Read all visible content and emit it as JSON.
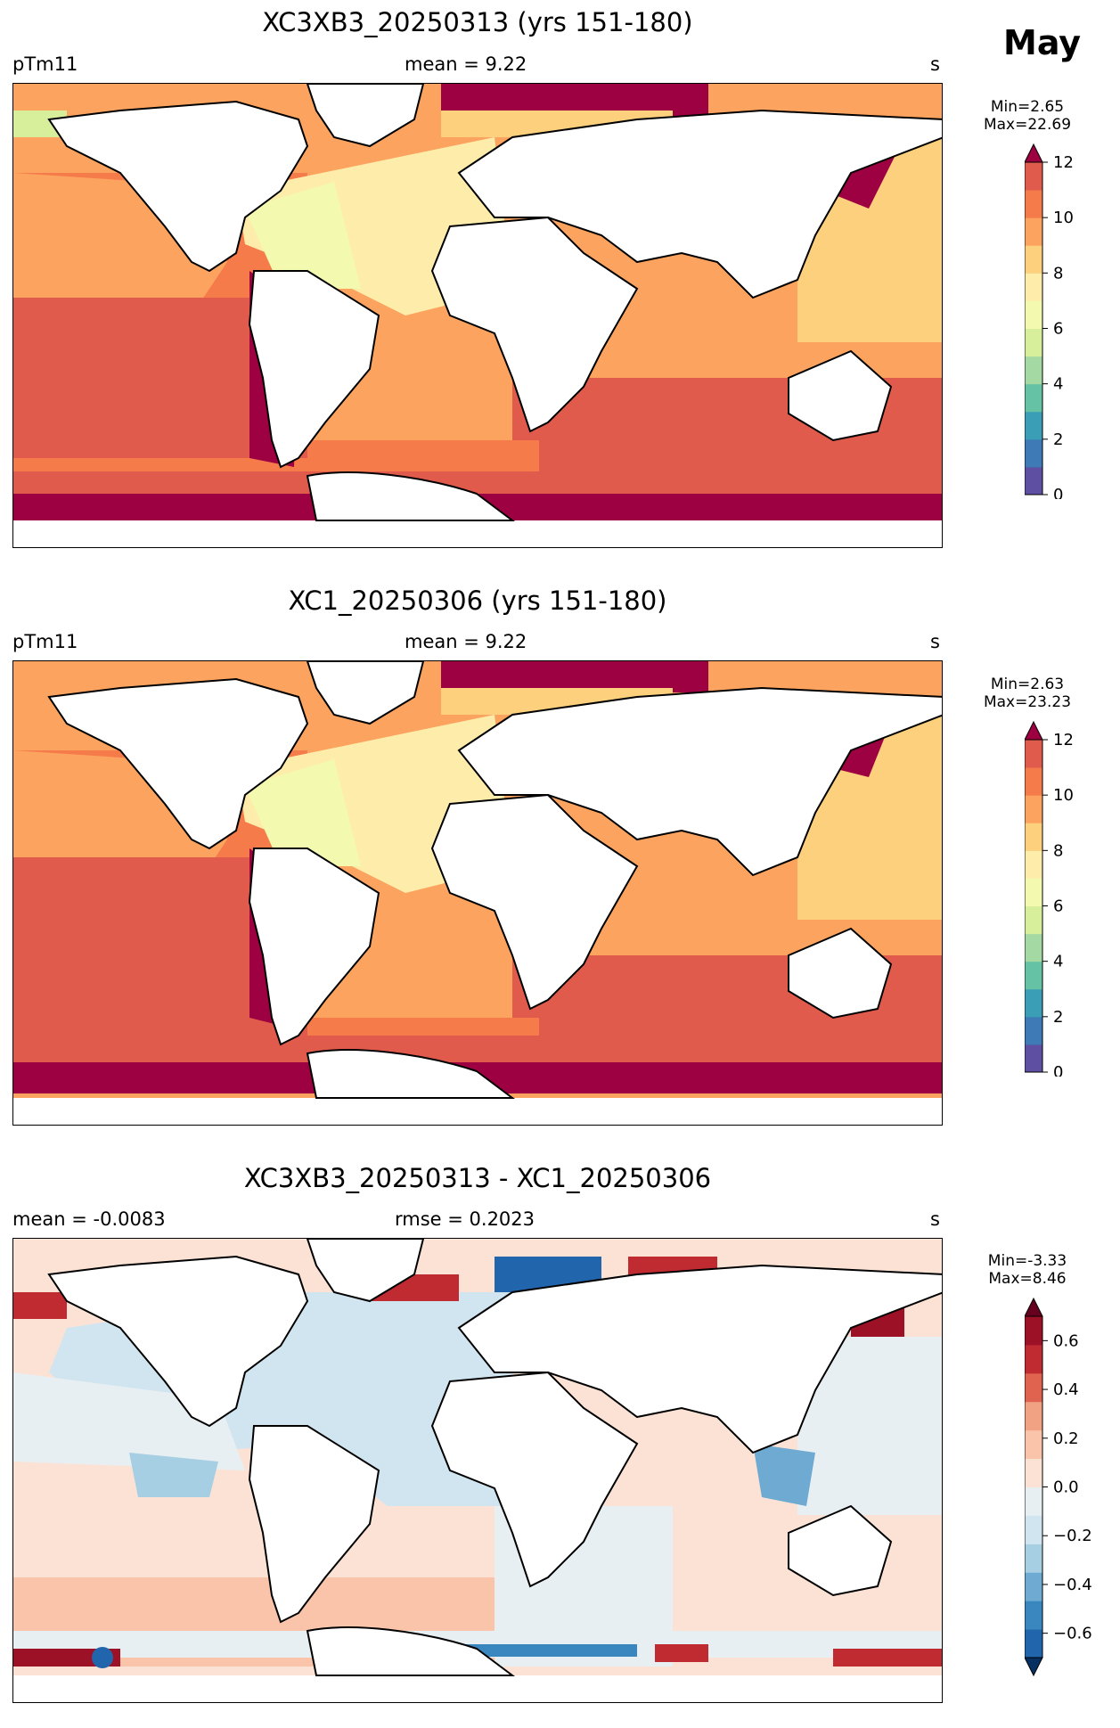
{
  "month": "May",
  "panels": [
    {
      "title": "XC3XB3_20250313 (yrs 151-180)",
      "left_label": "pTm11",
      "center_label": "mean = 9.22",
      "right_label": "s",
      "minmax": [
        "Min=2.65",
        "Max=22.69"
      ],
      "colorbar": {
        "ticks": [
          "0",
          "2",
          "4",
          "6",
          "8",
          "10",
          "12"
        ],
        "colors": [
          "#5e4fa2",
          "#3e7ab6",
          "#3a9fb6",
          "#66c2a5",
          "#a5d9a3",
          "#d7ef9b",
          "#f3fab0",
          "#feedaa",
          "#fdd07e",
          "#fca45f",
          "#f67b4a",
          "#e05b4b",
          "#9e0142"
        ],
        "extend": "max"
      }
    },
    {
      "title": "XC1_20250306 (yrs 151-180)",
      "left_label": "pTm11",
      "center_label": "mean = 9.22",
      "right_label": "s",
      "minmax": [
        "Min=2.63",
        "Max=23.23"
      ],
      "colorbar": {
        "ticks": [
          "0",
          "2",
          "4",
          "6",
          "8",
          "10",
          "12"
        ],
        "colors": [
          "#5e4fa2",
          "#3e7ab6",
          "#3a9fb6",
          "#66c2a5",
          "#a5d9a3",
          "#d7ef9b",
          "#f3fab0",
          "#feedaa",
          "#fdd07e",
          "#fca45f",
          "#f67b4a",
          "#e05b4b",
          "#9e0142"
        ],
        "extend": "max"
      }
    },
    {
      "title": "XC3XB3_20250313 - XC1_20250306",
      "left_label": "mean = -0.0083",
      "center_label": "rmse = 0.2023",
      "right_label": "s",
      "minmax": [
        "Min=-3.33",
        "Max=8.46"
      ],
      "colorbar": {
        "ticks": [
          "0.6",
          "0.4",
          "0.2",
          "0.0",
          "−0.2",
          "−0.4",
          "−0.6"
        ],
        "colors": [
          "#053061",
          "#2166ac",
          "#3a87c0",
          "#6eaad2",
          "#a7cfe4",
          "#d1e5f0",
          "#e8eff3",
          "#fbe2d5",
          "#f9c4aa",
          "#f1a283",
          "#e0634f",
          "#c02b31",
          "#9c1126",
          "#67001f"
        ],
        "extend": "both"
      }
    }
  ]
}
